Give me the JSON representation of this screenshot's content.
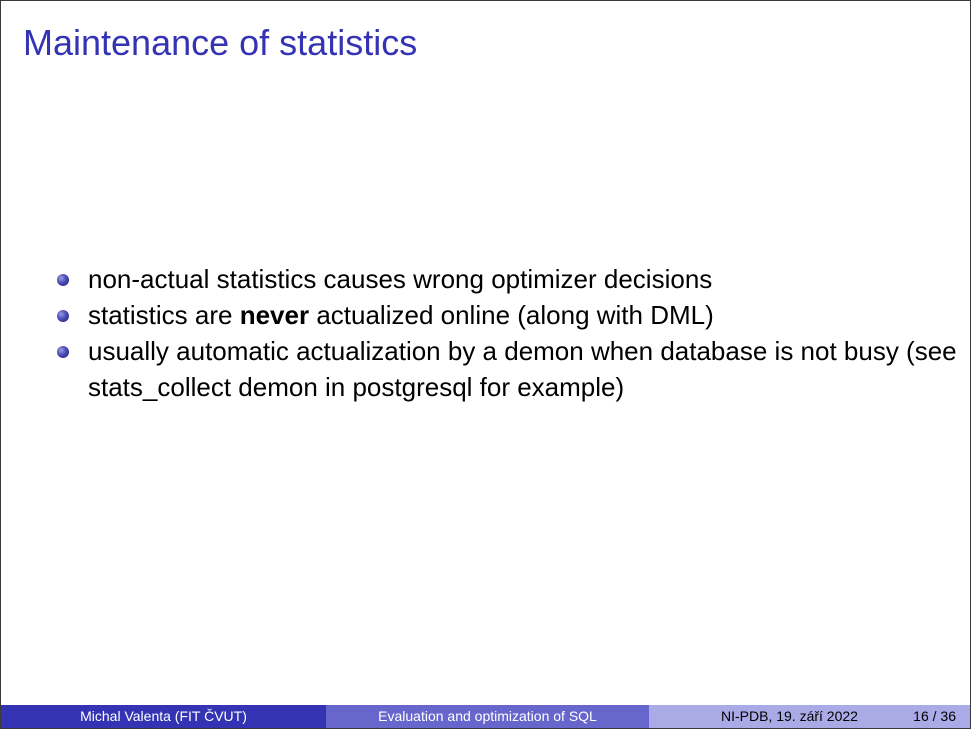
{
  "slide": {
    "title": "Maintenance of statistics",
    "bullets": [
      {
        "text": "non-actual statistics causes wrong optimizer decisions"
      },
      {
        "before": "statistics are ",
        "bold": "never",
        "after": " actualized online (along with DML)"
      },
      {
        "text": "usually automatic actualization by a demon when database is not busy (see stats_collect demon in postgresql for example)"
      }
    ]
  },
  "footer": {
    "author": "Michal Valenta  (FIT ČVUT)",
    "title": "Evaluation and optimization of SQL",
    "date": "NI-PDB, 19. září 2022",
    "page": "16 / 36"
  },
  "colors": {
    "title": "#3333b3",
    "footer_author_bg": "#3333b3",
    "footer_title_bg": "#6666cc",
    "footer_right_bg": "#aaaae6"
  }
}
